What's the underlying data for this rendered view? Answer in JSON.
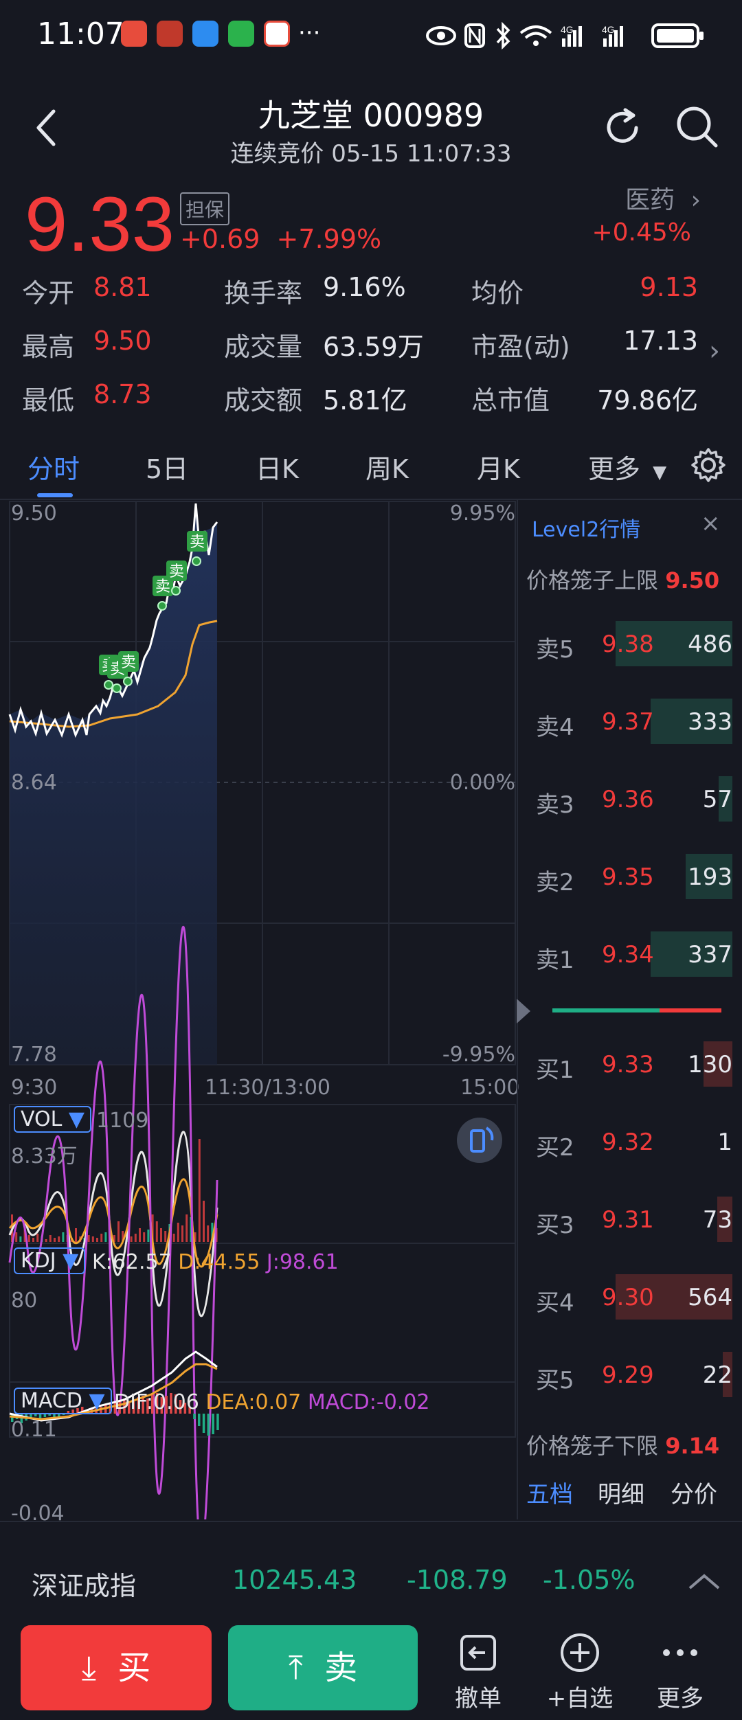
{
  "status": {
    "time": "11:07",
    "icons": [
      "app-red-icon",
      "chart-app-icon",
      "message-app-icon",
      "wechat-icon",
      "sp-app-icon",
      "more-dots-icon",
      "eye-icon",
      "nfc-icon",
      "bluetooth-icon",
      "wifi-icon",
      "signal-4g-icon",
      "signal-4g-icon",
      "battery-icon"
    ]
  },
  "header": {
    "title": "九芝堂 000989",
    "subtitle": "连续竞价 05-15 11:07:33"
  },
  "quote": {
    "price": "9.33",
    "tag": "担保",
    "change": "+0.69",
    "change_pct": "+7.99%",
    "sector": "医药",
    "sector_change": "+0.45%"
  },
  "stats": [
    {
      "label": "今开",
      "value": "8.81",
      "color": "#f23b3b"
    },
    {
      "label": "换手率",
      "value": "9.16%",
      "color": "#e6e8ee"
    },
    {
      "label": "均价",
      "value": "9.13",
      "color": "#f23b3b"
    },
    {
      "label": "最高",
      "value": "9.50",
      "color": "#f23b3b"
    },
    {
      "label": "成交量",
      "value": "63.59万",
      "color": "#e6e8ee"
    },
    {
      "label": "市盈(动)",
      "value": "17.13",
      "color": "#e6e8ee"
    },
    {
      "label": "最低",
      "value": "8.73",
      "color": "#f23b3b"
    },
    {
      "label": "成交额",
      "value": "5.81亿",
      "color": "#e6e8ee"
    },
    {
      "label": "总市值",
      "value": "79.86亿",
      "color": "#e6e8ee"
    }
  ],
  "tabs": [
    "分时",
    "5日",
    "日K",
    "周K",
    "月K",
    "更多"
  ],
  "chart": {
    "top_price": "9.50",
    "top_pct": "9.95%",
    "mid_price": "8.64",
    "mid_pct": "0.00%",
    "bottom_price": "7.78",
    "bottom_pct": "-9.95%",
    "time_start": "9:30",
    "time_mid": "11:30/13:00",
    "time_end": "15:00",
    "sell_marker": "卖"
  },
  "vol": {
    "label": "VOL",
    "value": "1109",
    "max": "8.33万"
  },
  "kdj": {
    "label": "KDJ",
    "k": "K:62.57",
    "d": "D:44.55",
    "j": "J:98.61",
    "level": "80"
  },
  "macd": {
    "label": "MACD",
    "dif": "DIF:0.06",
    "dea": "DEA:0.07",
    "macd": "MACD:-0.02",
    "top": "0.11",
    "bottom": "-0.04"
  },
  "level2": {
    "title": "Level2行情",
    "upper_label": "价格笼子上限",
    "upper_value": "9.50",
    "lower_label": "价格笼子下限",
    "lower_value": "9.14",
    "asks": [
      {
        "name": "卖5",
        "price": "9.38",
        "vol": "486",
        "bar": 1.0
      },
      {
        "name": "卖4",
        "price": "9.37",
        "vol": "333",
        "bar": 0.7
      },
      {
        "name": "卖3",
        "price": "9.36",
        "vol": "57",
        "bar": 0.12
      },
      {
        "name": "卖2",
        "price": "9.35",
        "vol": "193",
        "bar": 0.4
      },
      {
        "name": "卖1",
        "price": "9.34",
        "vol": "337",
        "bar": 0.7
      }
    ],
    "bids": [
      {
        "name": "买1",
        "price": "9.33",
        "vol": "130",
        "bar": 0.25
      },
      {
        "name": "买2",
        "price": "9.32",
        "vol": "1",
        "bar": 0.0
      },
      {
        "name": "买3",
        "price": "9.31",
        "vol": "73",
        "bar": 0.13
      },
      {
        "name": "买4",
        "price": "9.30",
        "vol": "564",
        "bar": 1.0
      },
      {
        "name": "买5",
        "price": "9.29",
        "vol": "22",
        "bar": 0.04
      }
    ],
    "footer_tabs": [
      "五档",
      "明细",
      "分价"
    ]
  },
  "index": {
    "name": "深证成指",
    "value": "10245.43",
    "change": "-108.79",
    "pct": "-1.05%"
  },
  "bottom": {
    "buy": "买",
    "sell": "卖",
    "cancel": "撤单",
    "watch": "+自选",
    "more": "更多"
  },
  "colors": {
    "up": "#f23b3b",
    "down": "#1fae86",
    "accent": "#4c8dff",
    "bg": "#161821"
  }
}
